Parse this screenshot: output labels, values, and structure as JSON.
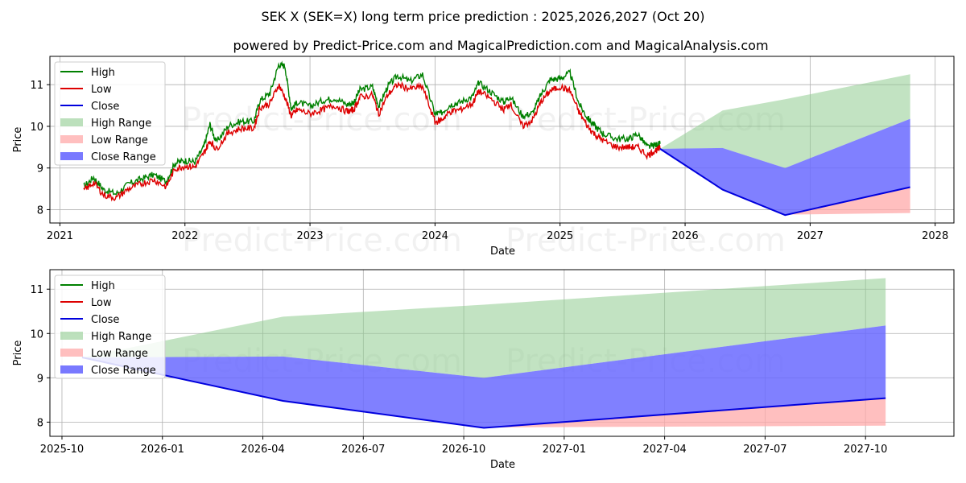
{
  "colors": {
    "high": "#008000",
    "low": "#dd0000",
    "close": "#0000dd",
    "high_range": "#8fcc8f",
    "low_range": "#ffaaaa",
    "close_range": "#6a6aff"
  },
  "chart_data": [
    {
      "type": "line",
      "title": "SEK X (SEK=X) long term price prediction : 2025,2026,2027 (Oct 20)",
      "subtitle": "powered by Predict-Price.com and MagicalPrediction.com and MagicalAnalysis.com",
      "watermark": "Predict-Price.com",
      "xlabel": "Date",
      "ylabel": "Price",
      "xlim": [
        2020.92,
        2028.15
      ],
      "ylim": [
        7.68,
        11.68
      ],
      "grid": true,
      "legend_position": "top-left",
      "legend": [
        "High",
        "Low",
        "Close",
        "High Range",
        "Low Range",
        "Close Range"
      ],
      "x_ticks": [
        {
          "v": 2021,
          "label": "2021"
        },
        {
          "v": 2022,
          "label": "2022"
        },
        {
          "v": 2023,
          "label": "2023"
        },
        {
          "v": 2024,
          "label": "2024"
        },
        {
          "v": 2025,
          "label": "2025"
        },
        {
          "v": 2026,
          "label": "2026"
        },
        {
          "v": 2027,
          "label": "2027"
        },
        {
          "v": 2028,
          "label": "2028"
        }
      ],
      "y_ticks": [
        8,
        9,
        10,
        11
      ],
      "history_low": [
        [
          2021.19,
          8.45
        ],
        [
          2021.27,
          8.65
        ],
        [
          2021.35,
          8.35
        ],
        [
          2021.45,
          8.28
        ],
        [
          2021.55,
          8.5
        ],
        [
          2021.65,
          8.62
        ],
        [
          2021.75,
          8.72
        ],
        [
          2021.85,
          8.55
        ],
        [
          2021.92,
          8.98
        ],
        [
          2022.0,
          9.05
        ],
        [
          2022.08,
          9.02
        ],
        [
          2022.15,
          9.35
        ],
        [
          2022.2,
          9.65
        ],
        [
          2022.25,
          9.45
        ],
        [
          2022.35,
          9.85
        ],
        [
          2022.45,
          9.95
        ],
        [
          2022.55,
          9.95
        ],
        [
          2022.6,
          10.45
        ],
        [
          2022.68,
          10.55
        ],
        [
          2022.75,
          11.0
        ],
        [
          2022.8,
          10.7
        ],
        [
          2022.85,
          10.25
        ],
        [
          2022.9,
          10.4
        ],
        [
          2023.0,
          10.3
        ],
        [
          2023.1,
          10.4
        ],
        [
          2023.2,
          10.5
        ],
        [
          2023.3,
          10.35
        ],
        [
          2023.35,
          10.4
        ],
        [
          2023.4,
          10.7
        ],
        [
          2023.5,
          10.75
        ],
        [
          2023.55,
          10.3
        ],
        [
          2023.62,
          10.75
        ],
        [
          2023.7,
          11.0
        ],
        [
          2023.8,
          10.9
        ],
        [
          2023.9,
          10.95
        ],
        [
          2024.0,
          10.1
        ],
        [
          2024.05,
          10.15
        ],
        [
          2024.12,
          10.35
        ],
        [
          2024.2,
          10.4
        ],
        [
          2024.3,
          10.55
        ],
        [
          2024.35,
          10.85
        ],
        [
          2024.45,
          10.65
        ],
        [
          2024.55,
          10.4
        ],
        [
          2024.6,
          10.55
        ],
        [
          2024.7,
          10.0
        ],
        [
          2024.78,
          10.15
        ],
        [
          2024.85,
          10.6
        ],
        [
          2024.92,
          10.85
        ],
        [
          2025.0,
          10.95
        ],
        [
          2025.08,
          10.85
        ],
        [
          2025.15,
          10.35
        ],
        [
          2025.22,
          10.0
        ],
        [
          2025.28,
          9.8
        ],
        [
          2025.35,
          9.65
        ],
        [
          2025.45,
          9.5
        ],
        [
          2025.55,
          9.5
        ],
        [
          2025.62,
          9.5
        ],
        [
          2025.7,
          9.3
        ],
        [
          2025.76,
          9.42
        ],
        [
          2025.8,
          9.46
        ]
      ],
      "history_high": [
        [
          2021.19,
          8.55
        ],
        [
          2021.27,
          8.78
        ],
        [
          2021.35,
          8.48
        ],
        [
          2021.45,
          8.38
        ],
        [
          2021.55,
          8.62
        ],
        [
          2021.65,
          8.74
        ],
        [
          2021.75,
          8.84
        ],
        [
          2021.85,
          8.68
        ],
        [
          2021.92,
          9.12
        ],
        [
          2022.0,
          9.18
        ],
        [
          2022.08,
          9.15
        ],
        [
          2022.15,
          9.5
        ],
        [
          2022.2,
          10.05
        ],
        [
          2022.25,
          9.62
        ],
        [
          2022.35,
          10.02
        ],
        [
          2022.45,
          10.12
        ],
        [
          2022.55,
          10.12
        ],
        [
          2022.6,
          10.62
        ],
        [
          2022.68,
          10.8
        ],
        [
          2022.75,
          11.48
        ],
        [
          2022.8,
          11.45
        ],
        [
          2022.85,
          10.42
        ],
        [
          2022.9,
          10.58
        ],
        [
          2023.0,
          10.48
        ],
        [
          2023.1,
          10.62
        ],
        [
          2023.2,
          10.68
        ],
        [
          2023.3,
          10.52
        ],
        [
          2023.35,
          10.58
        ],
        [
          2023.4,
          10.88
        ],
        [
          2023.5,
          10.95
        ],
        [
          2023.55,
          10.48
        ],
        [
          2023.62,
          10.95
        ],
        [
          2023.7,
          11.22
        ],
        [
          2023.8,
          11.08
        ],
        [
          2023.9,
          11.25
        ],
        [
          2024.0,
          10.3
        ],
        [
          2024.05,
          10.32
        ],
        [
          2024.12,
          10.52
        ],
        [
          2024.2,
          10.58
        ],
        [
          2024.3,
          10.72
        ],
        [
          2024.35,
          11.05
        ],
        [
          2024.45,
          10.82
        ],
        [
          2024.55,
          10.58
        ],
        [
          2024.6,
          10.72
        ],
        [
          2024.7,
          10.25
        ],
        [
          2024.78,
          10.32
        ],
        [
          2024.85,
          10.78
        ],
        [
          2024.92,
          11.12
        ],
        [
          2025.0,
          11.15
        ],
        [
          2025.08,
          11.28
        ],
        [
          2025.15,
          10.55
        ],
        [
          2025.22,
          10.2
        ],
        [
          2025.28,
          10.0
        ],
        [
          2025.35,
          9.82
        ],
        [
          2025.45,
          9.7
        ],
        [
          2025.55,
          9.7
        ],
        [
          2025.62,
          9.82
        ],
        [
          2025.7,
          9.5
        ],
        [
          2025.76,
          9.55
        ],
        [
          2025.8,
          9.58
        ]
      ],
      "series": [
        {
          "name": "High Range",
          "x": [
            2025.8,
            2026.3,
            2026.8,
            2027.8
          ],
          "lower": [
            9.46,
            9.48,
            9.0,
            10.18
          ],
          "upper": [
            9.46,
            10.38,
            10.65,
            11.25
          ]
        },
        {
          "name": "Low Range",
          "x": [
            2026.8,
            2027.8
          ],
          "lower": [
            7.88,
            7.92
          ],
          "upper": [
            7.88,
            8.54
          ]
        },
        {
          "name": "Close Range",
          "x": [
            2025.8,
            2026.3,
            2026.8,
            2027.8
          ],
          "lower": [
            9.46,
            8.48,
            7.87,
            8.54
          ],
          "upper": [
            9.46,
            9.48,
            9.0,
            10.18
          ]
        },
        {
          "name": "Close",
          "x": [
            2025.8,
            2026.3,
            2026.8,
            2027.8
          ],
          "values": [
            9.46,
            8.48,
            7.87,
            8.54
          ]
        }
      ]
    },
    {
      "type": "area",
      "xlabel": "Date",
      "ylabel": "Price",
      "watermark": "Predict-Price.com",
      "xlim": [
        2025.72,
        2027.97
      ],
      "ylim": [
        7.68,
        11.44
      ],
      "grid": true,
      "legend_position": "top-left",
      "legend": [
        "High",
        "Low",
        "Close",
        "High Range",
        "Low Range",
        "Close Range"
      ],
      "x_ticks": [
        {
          "v": 2025.75,
          "label": "2025-10"
        },
        {
          "v": 2026.0,
          "label": "2026-01"
        },
        {
          "v": 2026.25,
          "label": "2026-04"
        },
        {
          "v": 2026.5,
          "label": "2026-07"
        },
        {
          "v": 2026.75,
          "label": "2026-10"
        },
        {
          "v": 2027.0,
          "label": "2027-01"
        },
        {
          "v": 2027.25,
          "label": "2027-04"
        },
        {
          "v": 2027.5,
          "label": "2027-07"
        },
        {
          "v": 2027.75,
          "label": "2027-10"
        }
      ],
      "y_ticks": [
        8,
        9,
        10,
        11
      ],
      "series": [
        {
          "name": "High Range",
          "x": [
            2025.8,
            2026.3,
            2026.8,
            2027.8
          ],
          "lower": [
            9.46,
            9.48,
            9.0,
            10.18
          ],
          "upper": [
            9.46,
            10.38,
            10.65,
            11.25
          ]
        },
        {
          "name": "Low Range",
          "x": [
            2026.8,
            2027.8
          ],
          "lower": [
            7.88,
            7.92
          ],
          "upper": [
            7.88,
            8.54
          ]
        },
        {
          "name": "Close Range",
          "x": [
            2025.8,
            2026.3,
            2026.8,
            2027.8
          ],
          "lower": [
            9.46,
            8.48,
            7.87,
            8.54
          ],
          "upper": [
            9.46,
            9.48,
            9.0,
            10.18
          ]
        },
        {
          "name": "Close",
          "x": [
            2025.8,
            2026.3,
            2026.8,
            2027.8
          ],
          "values": [
            9.46,
            8.48,
            7.87,
            8.54
          ]
        }
      ]
    }
  ]
}
